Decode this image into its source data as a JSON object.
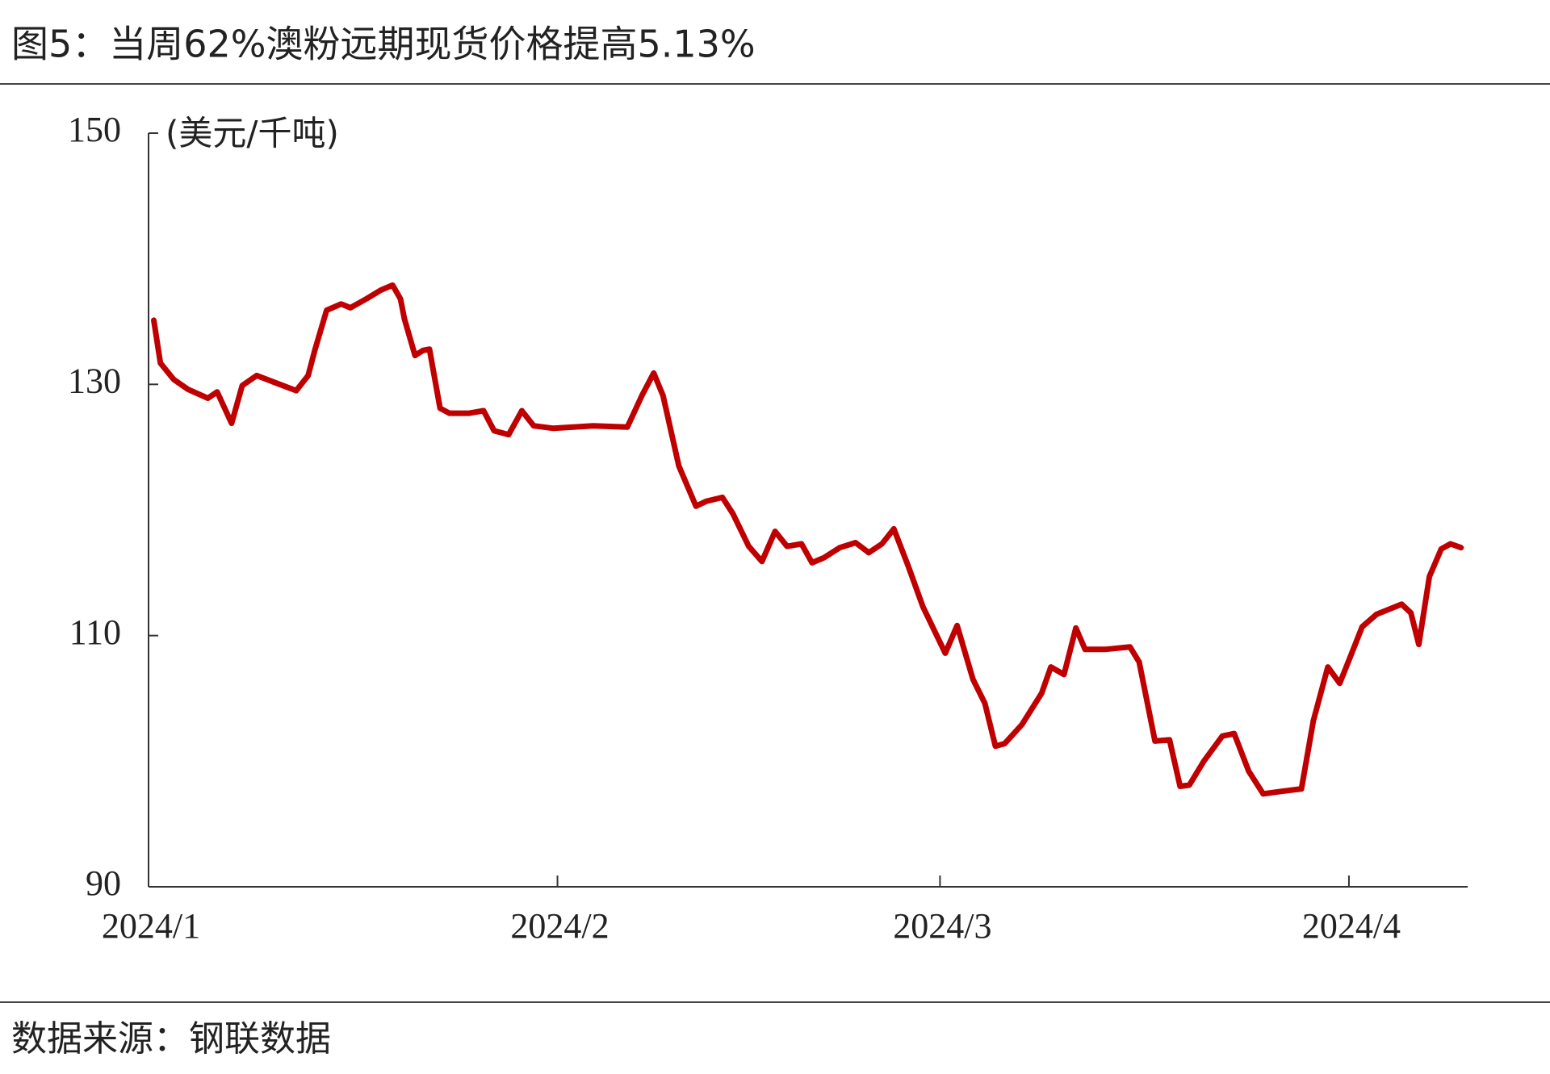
{
  "chart_data": {
    "type": "line",
    "title": "图5：当周62%澳粉远期现货价格提高5.13%",
    "y_label": "(美元/千吨)",
    "source": "数据来源：钢联数据",
    "x": [
      0.4,
      0.9,
      1.9,
      3.0,
      4.5,
      5.2,
      6.3,
      7.1,
      8.2,
      9.7,
      11.2,
      12.1,
      12.6,
      13.5,
      14.6,
      15.3,
      16.5,
      17.6,
      18.5,
      19.1,
      19.4,
      20.2,
      20.8,
      21.3,
      22.1,
      22.8,
      24.3,
      25.4,
      26.2,
      27.3,
      28.3,
      29.2,
      30.7,
      33.7,
      36.3,
      37.4,
      38.3,
      39.0,
      40.2,
      41.5,
      42.3,
      43.5,
      44.3,
      45.5,
      46.5,
      47.5,
      48.4,
      49.5,
      50.3,
      51.2,
      52.4,
      53.6,
      54.6,
      55.6,
      56.5,
      57.6,
      58.7,
      60.4,
      61.3,
      62.5,
      63.4,
      64.2,
      64.9,
      66.2,
      67.7,
      68.4,
      69.4,
      70.3,
      71.0,
      72.5,
      74.4,
      75.1,
      76.3,
      77.4,
      78.2,
      78.9,
      80.0,
      81.4,
      82.3,
      83.4,
      84.5,
      85.9,
      87.4,
      88.3,
      89.4,
      90.3,
      91.1,
      92.0,
      93.1,
      95.0,
      95.7,
      96.3,
      97.1,
      98.0,
      98.7,
      99.5
    ],
    "values": [
      135.1,
      131.7,
      130.4,
      129.6,
      128.9,
      129.4,
      126.9,
      129.9,
      130.7,
      130.1,
      129.5,
      130.7,
      132.7,
      135.9,
      136.4,
      136.1,
      136.8,
      137.5,
      137.9,
      136.8,
      135.2,
      132.3,
      132.7,
      132.8,
      128.1,
      127.7,
      127.7,
      127.9,
      126.3,
      126.0,
      127.9,
      126.7,
      126.5,
      126.7,
      126.6,
      129.1,
      130.9,
      129.1,
      123.5,
      120.3,
      120.7,
      121.0,
      119.7,
      117.1,
      115.9,
      118.3,
      117.1,
      117.3,
      115.8,
      116.2,
      117.0,
      117.4,
      116.6,
      117.3,
      118.5,
      115.5,
      112.3,
      108.6,
      110.8,
      106.5,
      104.6,
      101.2,
      101.4,
      102.9,
      105.4,
      107.5,
      106.9,
      110.6,
      108.9,
      108.9,
      109.1,
      107.9,
      101.6,
      101.7,
      98.0,
      98.1,
      100.0,
      102.0,
      102.2,
      99.2,
      97.4,
      97.6,
      97.8,
      103.2,
      107.5,
      106.2,
      108.3,
      110.7,
      111.7,
      112.5,
      111.8,
      109.3,
      114.7,
      116.9,
      117.3,
      117.0
    ],
    "color": "#c00000",
    "xlim": [
      0,
      100
    ],
    "xticks": [
      {
        "value": 0,
        "label": "2024/1"
      },
      {
        "value": 31,
        "label": "2024/2"
      },
      {
        "value": 60,
        "label": "2024/3"
      },
      {
        "value": 91,
        "label": "2024/4"
      }
    ],
    "ylim": [
      90,
      150
    ],
    "yticks": [
      90,
      110,
      130,
      150
    ],
    "grid": false
  }
}
